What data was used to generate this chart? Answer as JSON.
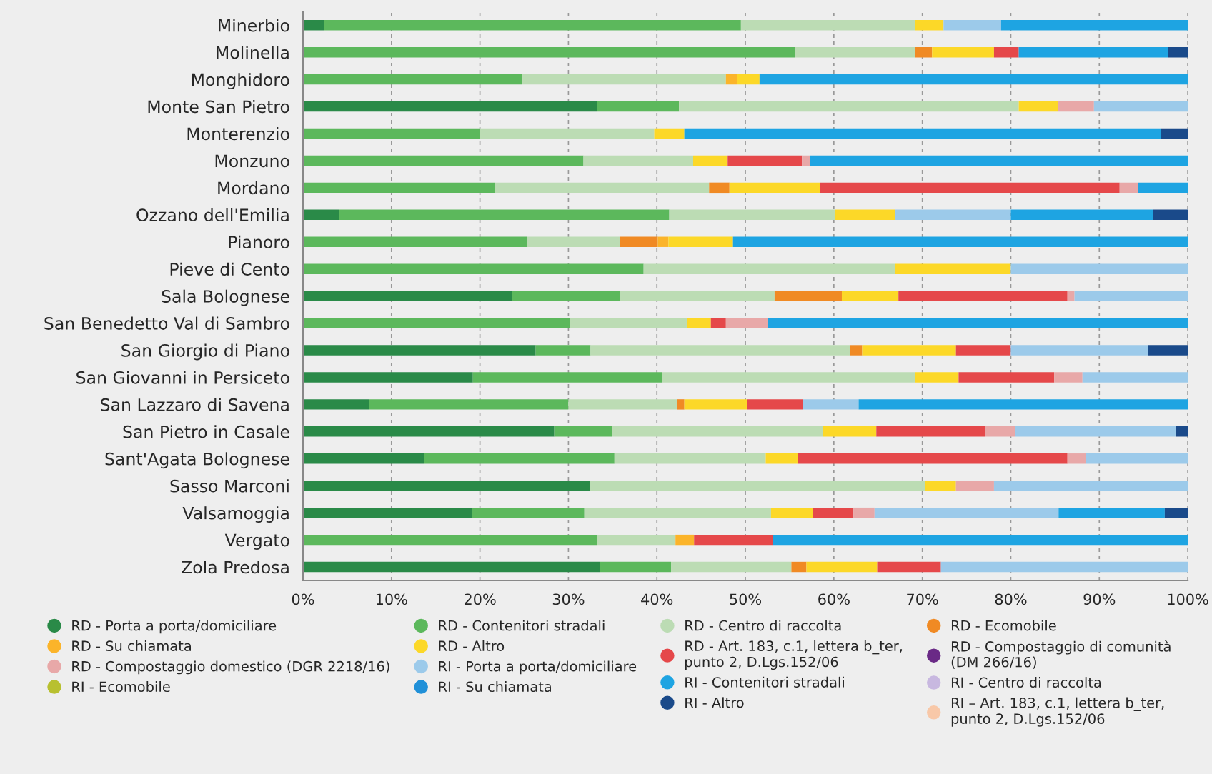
{
  "chart_data": {
    "type": "bar",
    "orientation": "horizontal",
    "stacked": true,
    "categories": [
      "Minerbio",
      "Molinella",
      "Monghidoro",
      "Monte San Pietro",
      "Monterenzio",
      "Monzuno",
      "Mordano",
      "Ozzano dell'Emilia",
      "Pianoro",
      "Pieve di Cento",
      "Sala Bolognese",
      "San Benedetto Val di Sambro",
      "San Giorgio di Piano",
      "San Giovanni in Persiceto",
      "San Lazzaro di Savena",
      "San Pietro in Casale",
      "Sant'Agata Bolognese",
      "Sasso Marconi",
      "Valsamoggia",
      "Vergato",
      "Zola Predosa"
    ],
    "series": [
      {
        "name": "RD - Porta a porta/domiciliare",
        "color": "#2a8a48",
        "values": [
          2.4,
          0,
          0,
          33.2,
          0,
          0,
          0,
          4.1,
          0,
          0,
          23.6,
          0,
          26.3,
          19.2,
          7.5,
          28.4,
          13.7,
          32.4,
          19.1,
          0,
          33.6
        ]
      },
      {
        "name": "RD - Contenitori stradali",
        "color": "#5cb85c",
        "values": [
          47.1,
          55.6,
          24.8,
          9.3,
          20.0,
          31.7,
          21.7,
          37.3,
          25.3,
          38.5,
          12.2,
          30.2,
          6.2,
          21.4,
          22.5,
          6.5,
          21.5,
          0,
          12.7,
          33.2,
          8.0
        ]
      },
      {
        "name": "RD - Centro di raccolta",
        "color": "#bcdcb4",
        "values": [
          19.7,
          13.6,
          23.0,
          38.4,
          19.7,
          12.4,
          24.2,
          18.7,
          10.5,
          28.4,
          17.5,
          13.2,
          29.3,
          28.6,
          12.3,
          23.9,
          17.1,
          37.9,
          21.1,
          8.9,
          13.6
        ]
      },
      {
        "name": "RD - Ecomobile",
        "color": "#f08a24",
        "values": [
          0,
          1.9,
          0,
          0,
          0,
          0,
          2.3,
          0,
          4.3,
          0,
          7.6,
          0,
          1.4,
          0,
          0.8,
          0,
          0,
          0,
          0,
          0,
          1.7
        ]
      },
      {
        "name": "RD - Su chiamata",
        "color": "#fbb42a",
        "values": [
          0,
          0,
          1.3,
          0,
          0,
          0,
          0,
          0,
          1.2,
          0,
          0,
          0,
          0,
          0,
          0,
          0,
          0,
          0,
          0,
          2.1,
          0
        ]
      },
      {
        "name": "RD - Altro",
        "color": "#fcd828",
        "values": [
          3.2,
          7.0,
          2.5,
          4.4,
          3.4,
          3.9,
          10.2,
          6.8,
          7.3,
          13.1,
          6.4,
          2.7,
          10.6,
          4.9,
          7.1,
          6.0,
          3.6,
          3.5,
          4.7,
          0,
          8.0
        ]
      },
      {
        "name": "RD - Art. 183, c.1, lettera b_ter,\npunto 2, D.Lgs.152/06",
        "color": "#e5484a",
        "values": [
          0,
          2.8,
          0,
          0,
          0,
          8.4,
          33.9,
          0,
          0,
          0,
          19.1,
          1.7,
          6.2,
          10.8,
          6.3,
          12.3,
          30.5,
          0,
          4.6,
          8.9,
          7.2
        ]
      },
      {
        "name": "RD - Compostaggio di comunità\n(DM 266/16)",
        "color": "#6a2a86",
        "values": [
          0,
          0,
          0,
          0,
          0,
          0,
          0,
          0,
          0,
          0,
          0,
          0,
          0,
          0,
          0,
          0,
          0,
          0,
          0,
          0,
          0
        ]
      },
      {
        "name": "RD - Compostaggio domestico (DGR 2218/16)",
        "color": "#e8a8a8",
        "values": [
          0,
          0,
          0,
          4.1,
          0,
          0.9,
          2.1,
          0,
          0,
          0,
          0.8,
          4.7,
          0,
          3.2,
          0,
          3.4,
          2.1,
          4.3,
          2.4,
          0,
          0
        ]
      },
      {
        "name": "RI - Porta a porta/domiciliare",
        "color": "#9ccaea",
        "values": [
          6.5,
          0,
          0,
          10.6,
          0,
          0,
          0,
          13.1,
          0,
          20.0,
          12.8,
          0,
          15.5,
          11.9,
          6.3,
          18.2,
          11.5,
          21.9,
          20.8,
          0,
          27.9
        ]
      },
      {
        "name": "RI - Contenitori stradali",
        "color": "#1ea4e2",
        "values": [
          21.1,
          16.9,
          48.4,
          0,
          53.9,
          42.7,
          5.6,
          16.1,
          51.4,
          0,
          0,
          47.5,
          0,
          0,
          37.2,
          0,
          0,
          0,
          12.0,
          46.9,
          0
        ]
      },
      {
        "name": "RI - Centro di raccolta",
        "color": "#c8b8e0",
        "values": [
          0,
          0,
          0,
          0,
          0,
          0,
          0,
          0,
          0,
          0,
          0,
          0,
          0,
          0,
          0,
          0,
          0,
          0,
          0,
          0,
          0
        ]
      },
      {
        "name": "RI - Ecomobile",
        "color": "#b8c030",
        "values": [
          0,
          0,
          0,
          0,
          0,
          0,
          0,
          0,
          0,
          0,
          0,
          0,
          0,
          0,
          0,
          0,
          0,
          0,
          0,
          0,
          0
        ]
      },
      {
        "name": "RI - Su chiamata",
        "color": "#2090d8",
        "values": [
          0,
          0,
          0,
          0,
          0,
          0,
          0,
          0,
          0,
          0,
          0,
          0,
          0,
          0,
          0,
          0,
          0,
          0,
          0,
          0,
          0
        ]
      },
      {
        "name": "RI - Altro",
        "color": "#1a4a8a",
        "values": [
          0,
          2.2,
          0,
          0,
          3.0,
          0,
          0,
          3.9,
          0,
          0,
          0,
          0,
          4.5,
          0,
          0,
          1.3,
          0,
          0,
          2.6,
          0,
          0
        ]
      },
      {
        "name": "RI – Art. 183, c.1, lettera b_ter,\npunto 2, D.Lgs.152/06",
        "color": "#f8c8a8",
        "values": [
          0,
          0,
          0,
          0,
          0,
          0,
          0,
          0,
          0,
          0,
          0,
          0,
          0,
          0,
          0,
          0,
          0,
          0,
          0,
          0,
          0
        ]
      }
    ],
    "xlim": [
      0,
      100
    ],
    "xticks": [
      {
        "value": 0,
        "label": "0%"
      },
      {
        "value": 10,
        "label": "10%"
      },
      {
        "value": 20,
        "label": "20%"
      },
      {
        "value": 30,
        "label": "30%"
      },
      {
        "value": 40,
        "label": "40%"
      },
      {
        "value": 50,
        "label": "50%"
      },
      {
        "value": 60,
        "label": "60%"
      },
      {
        "value": 70,
        "label": "70%"
      },
      {
        "value": 80,
        "label": "80%"
      },
      {
        "value": 90,
        "label": "90%"
      },
      {
        "value": 100,
        "label": "100%"
      }
    ],
    "grid": "x",
    "legend": "bottom",
    "marker": "circle"
  }
}
